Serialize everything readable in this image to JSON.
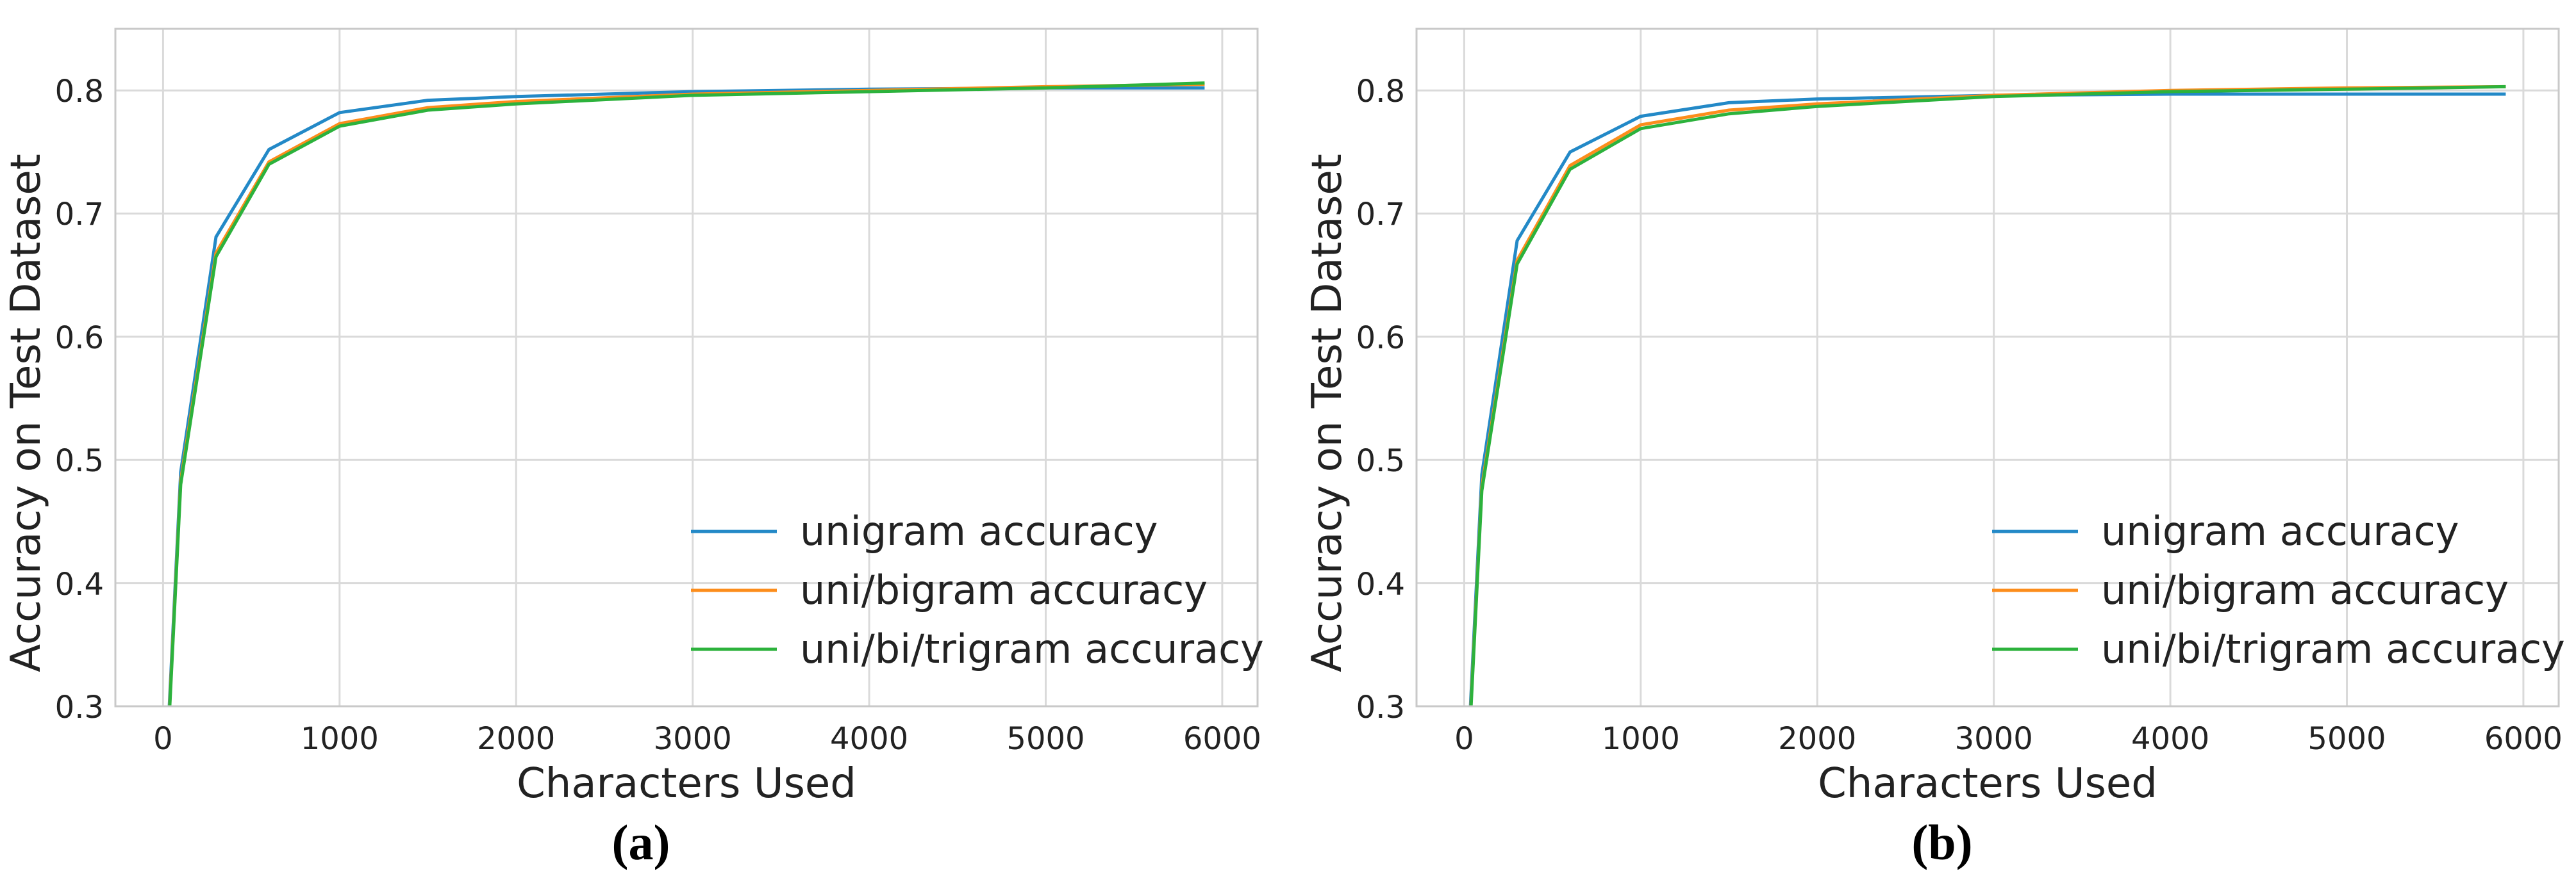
{
  "figure": {
    "axes": {
      "xlabel": "Characters Used",
      "ylabel": "Accuracy on Test Dataset",
      "x_ticks": [
        "0",
        "1000",
        "2000",
        "3000",
        "4000",
        "5000",
        "6000"
      ],
      "y_ticks": [
        "0.8",
        "0.7",
        "0.6",
        "0.5",
        "0.4",
        "0.3"
      ]
    },
    "grid": "on",
    "legend_position": "lower right inside plot"
  },
  "chart_data": [
    {
      "type": "line",
      "caption": "(a)",
      "xlabel": "Characters Used",
      "ylabel": "Accuracy on Test Dataset",
      "xlim": [
        -270,
        6200
      ],
      "ylim": [
        0.3,
        0.85
      ],
      "x": [
        25,
        100,
        300,
        600,
        1000,
        1500,
        2000,
        3000,
        4000,
        5000,
        5900
      ],
      "series": [
        {
          "name": "unigram accuracy",
          "color": "#2389c7",
          "values": [
            0.27,
            0.49,
            0.681,
            0.752,
            0.782,
            0.792,
            0.795,
            0.799,
            0.801,
            0.802,
            0.802
          ]
        },
        {
          "name": "uni/bigram accuracy",
          "color": "#fc8d1c",
          "values": [
            0.265,
            0.483,
            0.668,
            0.742,
            0.773,
            0.786,
            0.791,
            0.797,
            0.8,
            0.803,
            0.805
          ]
        },
        {
          "name": "uni/bi/trigram accuracy",
          "color": "#2cb23c",
          "values": [
            0.262,
            0.48,
            0.665,
            0.74,
            0.771,
            0.784,
            0.789,
            0.796,
            0.799,
            0.802,
            0.806
          ]
        }
      ]
    },
    {
      "type": "line",
      "caption": "(b)",
      "xlabel": "Characters Used",
      "ylabel": "Accuracy on Test Dataset",
      "xlim": [
        -270,
        6200
      ],
      "ylim": [
        0.3,
        0.85
      ],
      "x": [
        25,
        100,
        300,
        600,
        1000,
        1500,
        2000,
        3000,
        4000,
        5000,
        5900
      ],
      "series": [
        {
          "name": "unigram accuracy",
          "color": "#2389c7",
          "values": [
            0.27,
            0.488,
            0.678,
            0.75,
            0.779,
            0.79,
            0.793,
            0.796,
            0.797,
            0.797,
            0.797
          ]
        },
        {
          "name": "uni/bigram accuracy",
          "color": "#fc8d1c",
          "values": [
            0.263,
            0.478,
            0.662,
            0.739,
            0.772,
            0.784,
            0.789,
            0.796,
            0.8,
            0.802,
            0.803
          ]
        },
        {
          "name": "uni/bi/trigram accuracy",
          "color": "#2cb23c",
          "values": [
            0.26,
            0.475,
            0.659,
            0.736,
            0.769,
            0.781,
            0.787,
            0.795,
            0.799,
            0.801,
            0.803
          ]
        }
      ]
    }
  ]
}
